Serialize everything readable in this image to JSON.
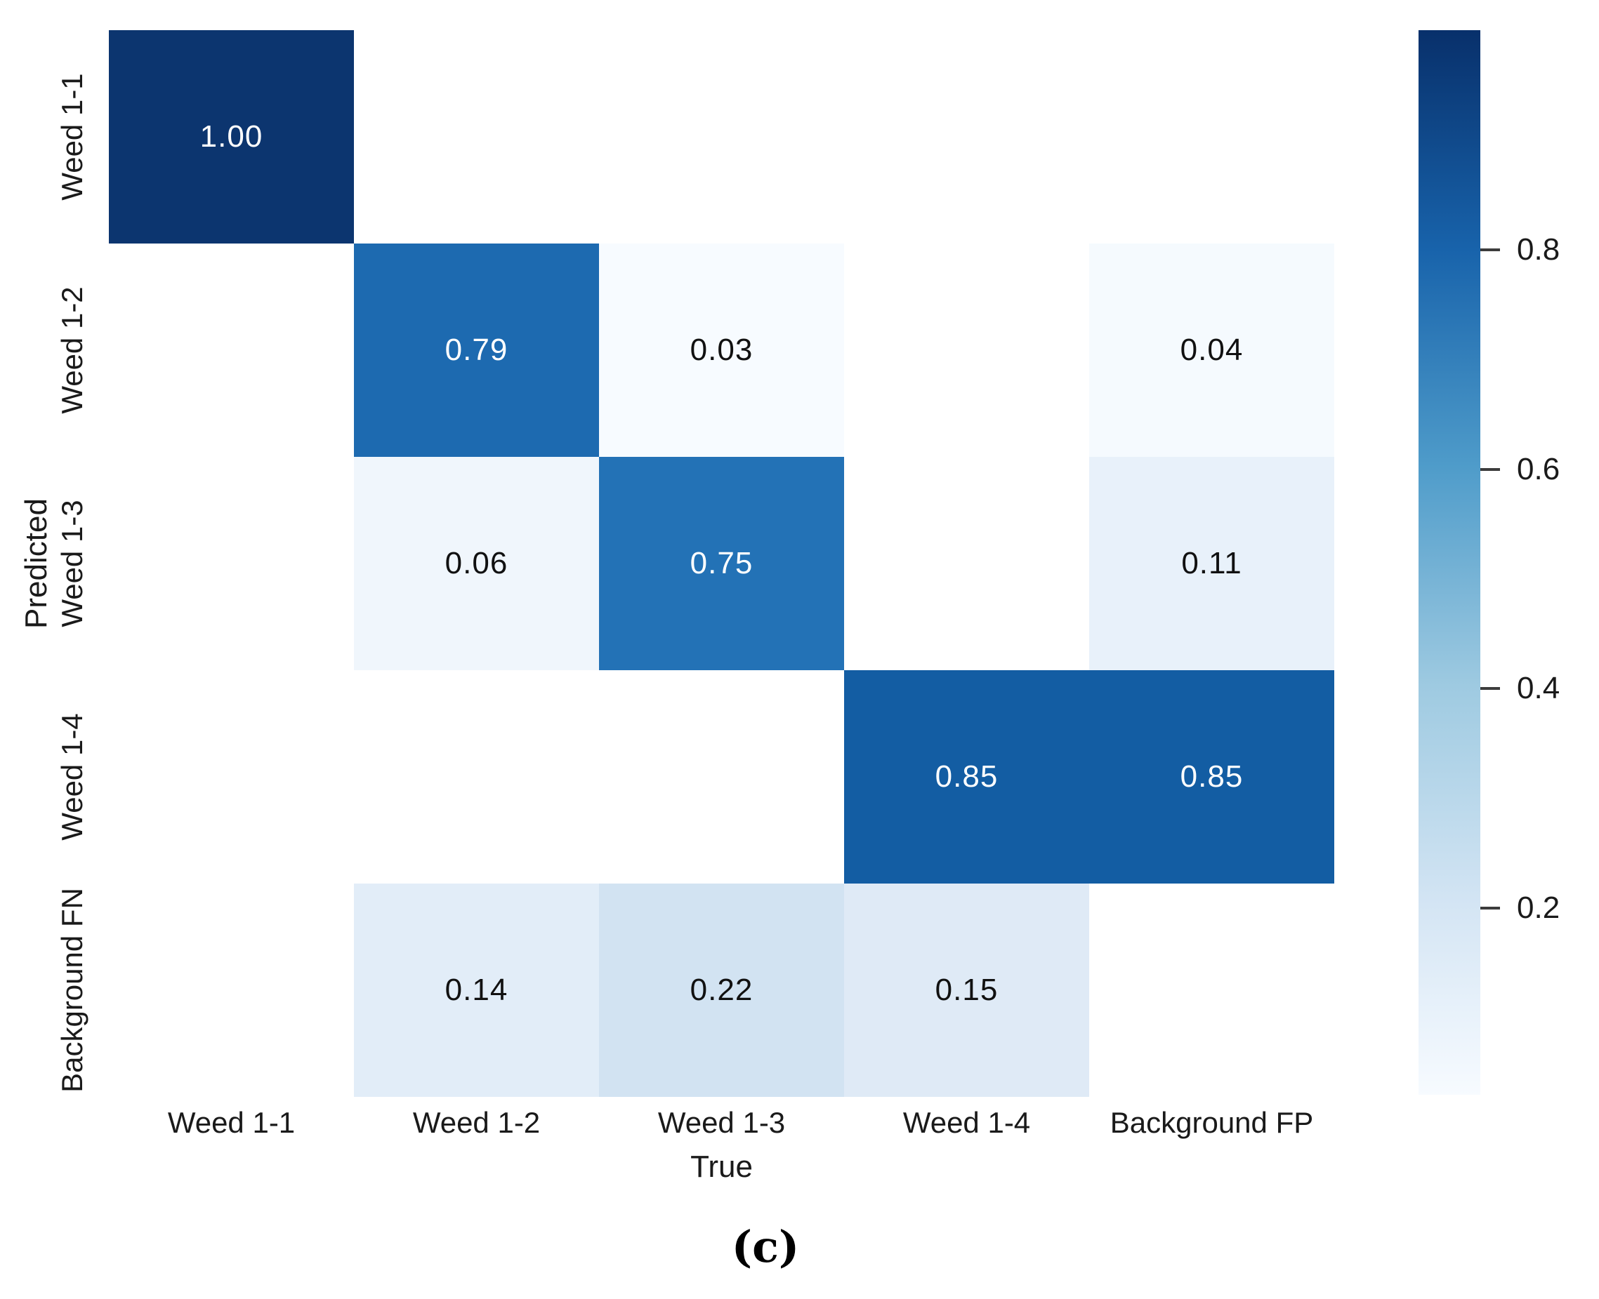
{
  "figure": {
    "caption": "(c)"
  },
  "chart_data": {
    "type": "heatmap",
    "title": "",
    "xlabel": "True",
    "ylabel": "Predicted",
    "x_categories": [
      "Weed 1-1",
      "Weed 1-2",
      "Weed 1-3",
      "Weed 1-4",
      "Background FP"
    ],
    "y_categories": [
      "Weed 1-1",
      "Weed 1-2",
      "Weed 1-3",
      "Weed 1-4",
      "Background FN"
    ],
    "empty_cell_color": "#ffffff",
    "annotation_colors": {
      "dark_cell_text": "#ffffff",
      "light_cell_text": "#111111"
    },
    "cells": [
      {
        "row": 0,
        "col": 0,
        "value": 1.0,
        "label": "1.00",
        "color": "#0c356f",
        "text_color": "#ffffff"
      },
      {
        "row": 1,
        "col": 1,
        "value": 0.79,
        "label": "0.79",
        "color": "#1d6ab0",
        "text_color": "#ffffff"
      },
      {
        "row": 1,
        "col": 2,
        "value": 0.03,
        "label": "0.03",
        "color": "#f7fbff",
        "text_color": "#111111"
      },
      {
        "row": 1,
        "col": 4,
        "value": 0.04,
        "label": "0.04",
        "color": "#f5fafe",
        "text_color": "#111111"
      },
      {
        "row": 2,
        "col": 1,
        "value": 0.06,
        "label": "0.06",
        "color": "#f0f6fc",
        "text_color": "#111111"
      },
      {
        "row": 2,
        "col": 2,
        "value": 0.75,
        "label": "0.75",
        "color": "#2372b6",
        "text_color": "#ffffff"
      },
      {
        "row": 2,
        "col": 4,
        "value": 0.11,
        "label": "0.11",
        "color": "#e8f1fa",
        "text_color": "#111111"
      },
      {
        "row": 3,
        "col": 3,
        "value": 0.85,
        "label": "0.85",
        "color": "#135da3",
        "text_color": "#ffffff"
      },
      {
        "row": 3,
        "col": 4,
        "value": 0.85,
        "label": "0.85",
        "color": "#135da3",
        "text_color": "#ffffff"
      },
      {
        "row": 4,
        "col": 1,
        "value": 0.14,
        "label": "0.14",
        "color": "#e2edf8",
        "text_color": "#111111"
      },
      {
        "row": 4,
        "col": 2,
        "value": 0.22,
        "label": "0.22",
        "color": "#d2e3f2",
        "text_color": "#111111"
      },
      {
        "row": 4,
        "col": 3,
        "value": 0.15,
        "label": "0.15",
        "color": "#dfeaf6",
        "text_color": "#111111"
      }
    ],
    "colorbar": {
      "vmin": 0.03,
      "vmax": 1.0,
      "ticks": [
        0.8,
        0.6,
        0.4,
        0.2
      ],
      "tick_labels": [
        "0.8",
        "0.6",
        "0.4",
        "0.2"
      ],
      "gradient_stops": [
        {
          "color": "#08306b",
          "pct": 0
        },
        {
          "color": "#1863ab",
          "pct": 20.6
        },
        {
          "color": "#4f9cca",
          "pct": 41.1
        },
        {
          "color": "#9ecae1",
          "pct": 61.6
        },
        {
          "color": "#d4e5f4",
          "pct": 82.2
        },
        {
          "color": "#f7fbff",
          "pct": 100
        }
      ]
    },
    "legend": null,
    "grid": false
  }
}
